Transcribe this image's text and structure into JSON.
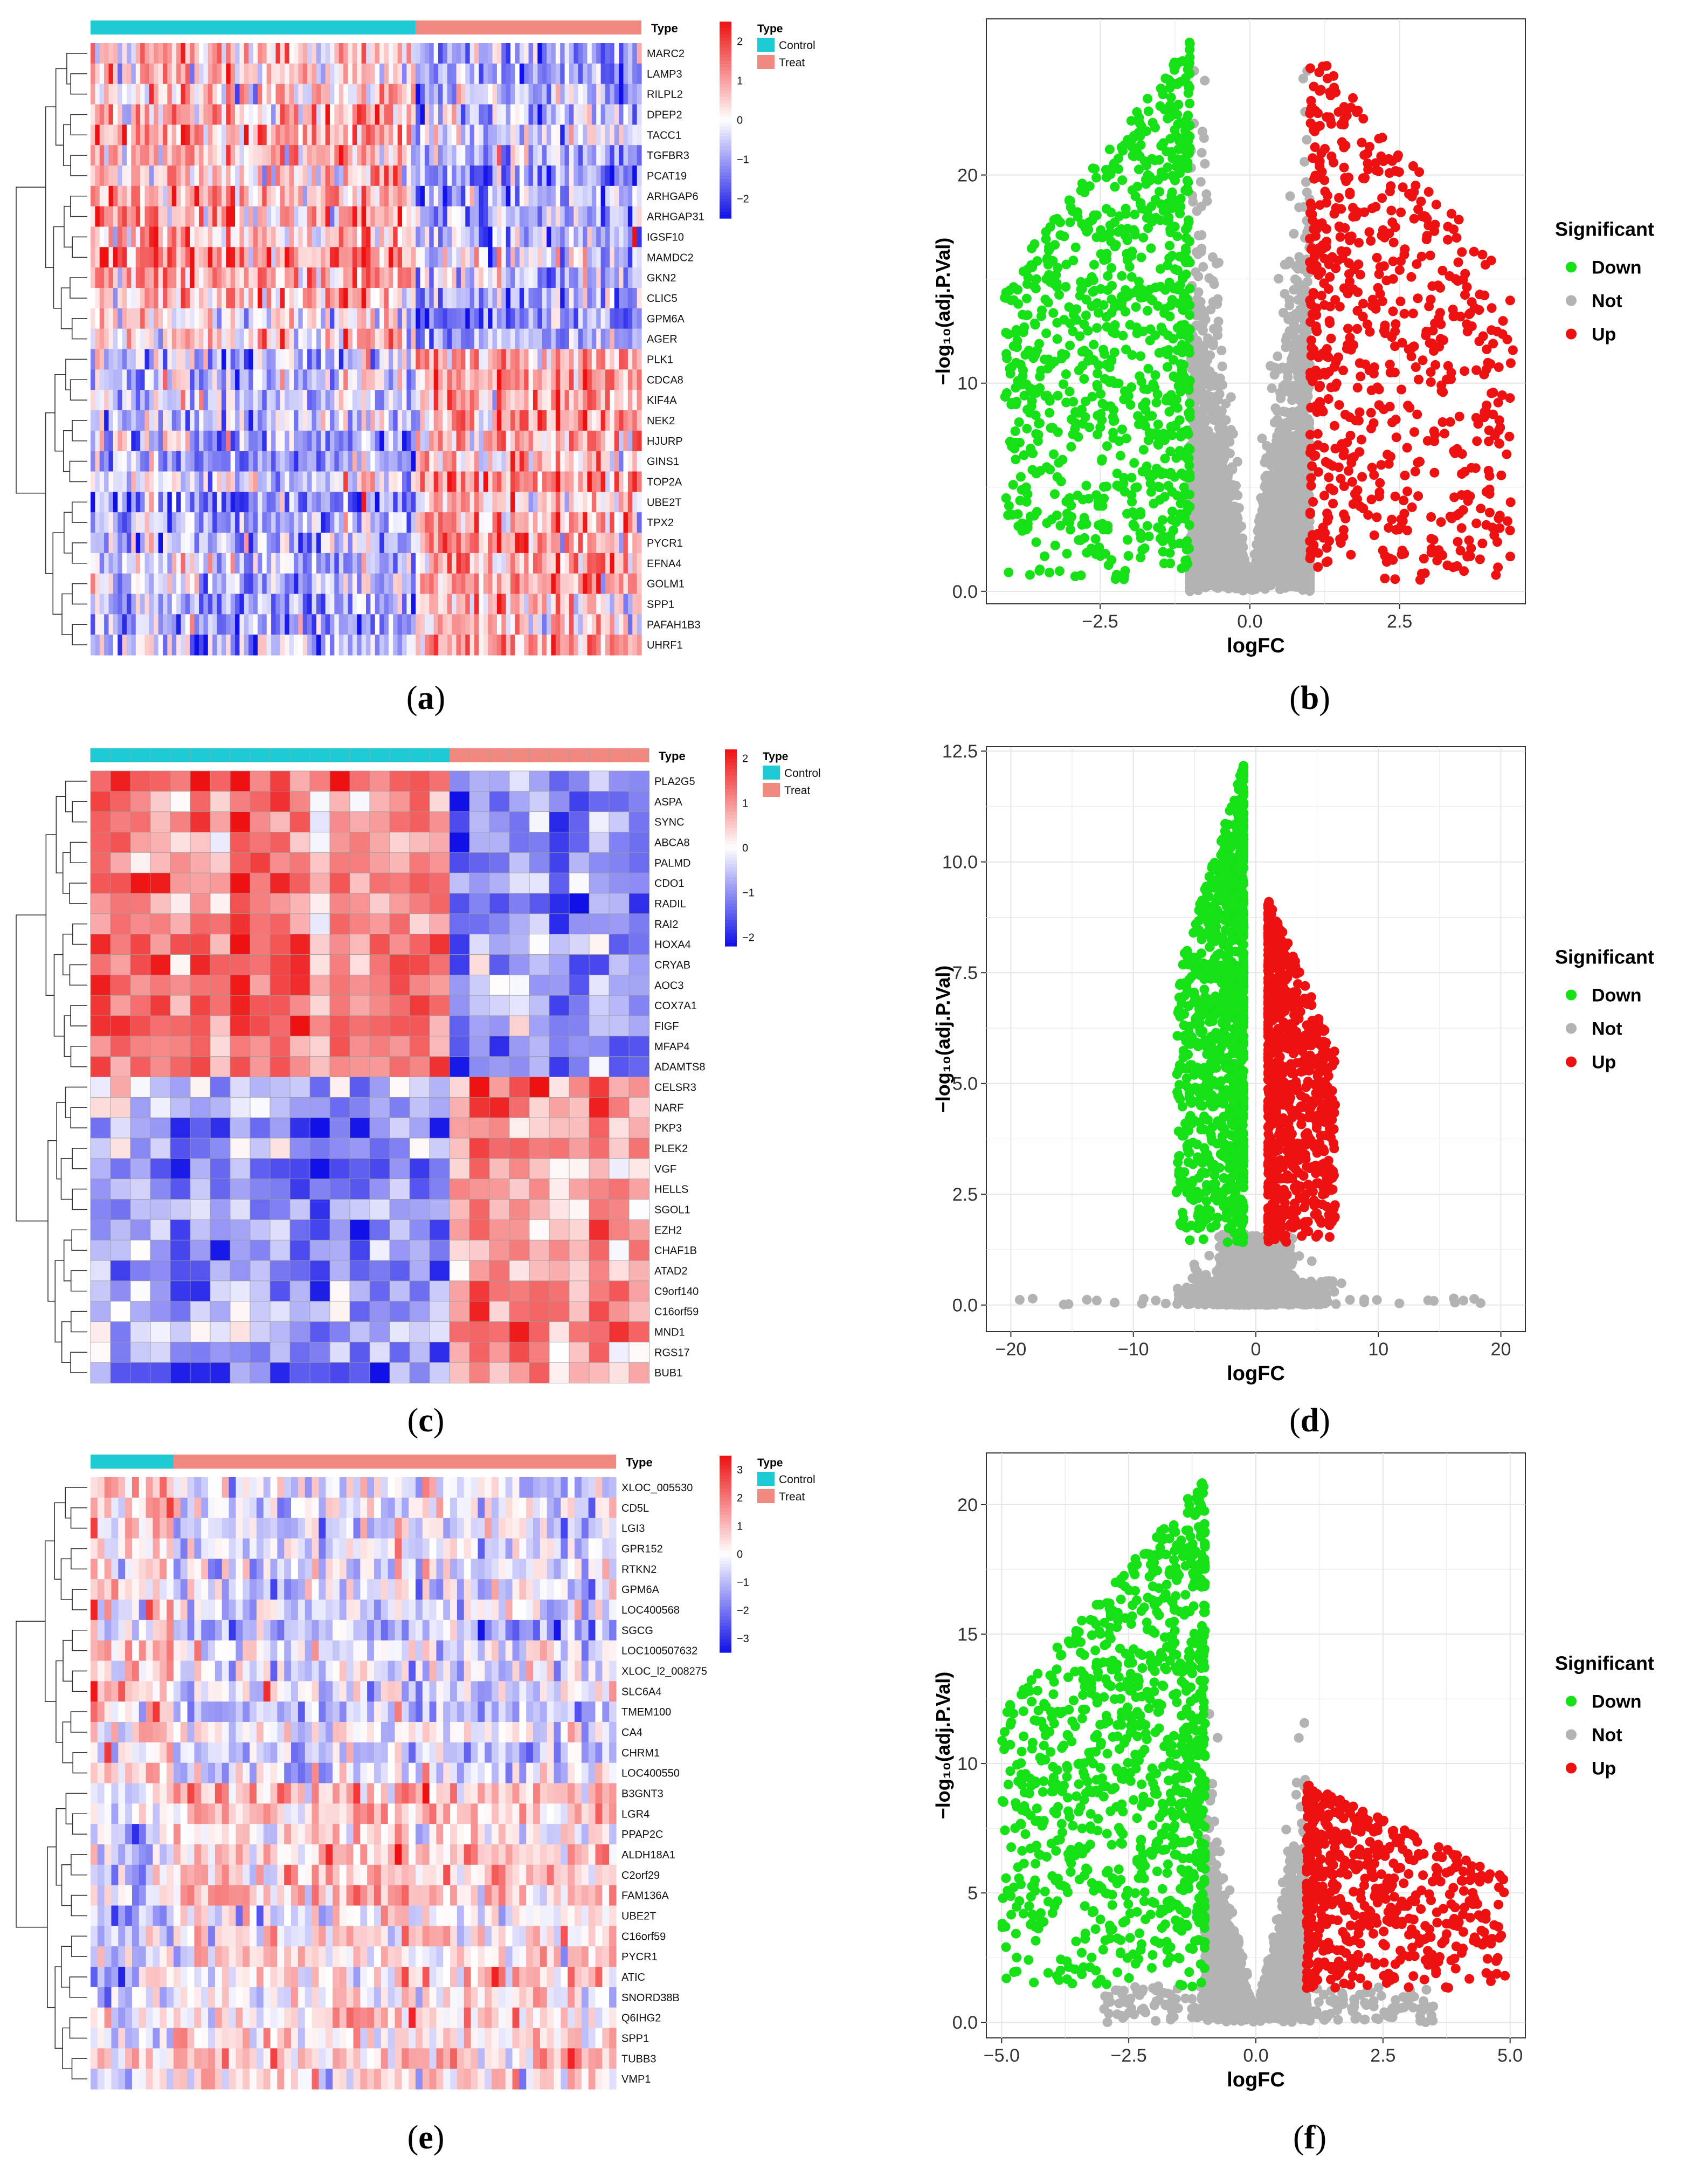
{
  "colors": {
    "control": "#1ecbd4",
    "treat": "#f08a80",
    "heat_low": "#1010e8",
    "heat_mid": "#ffffff",
    "heat_high": "#ee1111",
    "down": "#16e016",
    "not": "#b3b3b3",
    "up": "#ee1111"
  },
  "panels": [
    {
      "id": "a",
      "label": "a"
    },
    {
      "id": "b",
      "label": "b"
    },
    {
      "id": "c",
      "label": "c"
    },
    {
      "id": "d",
      "label": "d"
    },
    {
      "id": "e",
      "label": "e"
    },
    {
      "id": "f",
      "label": "f"
    }
  ],
  "chart_data": [
    {
      "panel": "a",
      "type": "heatmap",
      "annotation_title": "Type",
      "legend_title": "Type",
      "legend_items": [
        "Control",
        "Treat"
      ],
      "n_control": 72,
      "n_treat": 50,
      "colorbar_ticks": [
        "2",
        "1",
        "0",
        "−1",
        "−2"
      ],
      "colorbar_range": [
        -2.5,
        2.5
      ],
      "genes_up_in_control": [
        "MARC2",
        "LAMP3",
        "RILPL2",
        "DPEP2",
        "TACC1",
        "TGFBR3",
        "PCAT19",
        "ARHGAP6",
        "ARHGAP31",
        "IGSF10",
        "MAMDC2",
        "GKN2",
        "CLIC5",
        "GPM6A",
        "AGER"
      ],
      "genes_up_in_treat": [
        "PLK1",
        "CDCA8",
        "KIF4A",
        "NEK2",
        "HJURP",
        "GINS1",
        "TOP2A",
        "UBE2T",
        "TPX2",
        "PYCR1",
        "EFNA4",
        "GOLM1",
        "SPP1",
        "PAFAH1B3",
        "UHRF1"
      ]
    },
    {
      "panel": "b",
      "type": "scatter",
      "xlabel": "logFC",
      "ylabel": "−log₁₀(adj.P.Val)",
      "xlim": [
        -4.4,
        4.6
      ],
      "ylim": [
        -0.6,
        27.5
      ],
      "xticks": [
        -2.5,
        0.0,
        2.5
      ],
      "xtick_labels": [
        "−2.5",
        "0.0",
        "2.5"
      ],
      "yticks": [
        0,
        10,
        20
      ],
      "ytick_labels": [
        "0.0",
        "10",
        "20"
      ],
      "grid": true,
      "legend_title": "Significant",
      "legend_position": "right",
      "series": [
        {
          "name": "Down",
          "x_range": [
            -4.1,
            -1.0
          ],
          "y_max": 26.5,
          "n": 900
        },
        {
          "name": "Not",
          "x_range": [
            -1.0,
            1.0
          ],
          "y_max": 25.0,
          "n": 2600
        },
        {
          "name": "Up",
          "x_range": [
            1.0,
            4.4
          ],
          "y_max": 26.5,
          "n": 650
        }
      ]
    },
    {
      "panel": "c",
      "type": "heatmap",
      "annotation_title": "Type",
      "legend_title": "Type",
      "legend_items": [
        "Control",
        "Treat"
      ],
      "n_control": 18,
      "n_treat": 10,
      "colorbar_ticks": [
        "2",
        "1",
        "0",
        "−1",
        "−2"
      ],
      "colorbar_range": [
        -2.2,
        2.2
      ],
      "genes_up_in_control": [
        "PLA2G5",
        "ASPA",
        "SYNC",
        "ABCA8",
        "PALMD",
        "CDO1",
        "RADIL",
        "RAI2",
        "HOXA4",
        "CRYAB",
        "AOC3",
        "COX7A1",
        "FIGF",
        "MFAP4",
        "ADAMTS8"
      ],
      "genes_up_in_treat": [
        "CELSR3",
        "NARF",
        "PKP3",
        "PLEK2",
        "VGF",
        "HELLS",
        "SGOL1",
        "EZH2",
        "CHAF1B",
        "ATAD2",
        "C9orf140",
        "C16orf59",
        "MND1",
        "RGS17",
        "BUB1"
      ]
    },
    {
      "panel": "d",
      "type": "scatter",
      "xlabel": "logFC",
      "ylabel": "−log₁₀(adj.P.Val)",
      "xlim": [
        -22,
        22
      ],
      "ylim": [
        -0.6,
        12.6
      ],
      "xticks": [
        -20,
        -10,
        0,
        10,
        20
      ],
      "xtick_labels": [
        "−20",
        "−10",
        "0",
        "10",
        "20"
      ],
      "yticks": [
        0.0,
        2.5,
        5.0,
        7.5,
        10.0,
        12.5
      ],
      "ytick_labels": [
        "0.0",
        "2.5",
        "5.0",
        "7.5",
        "10.0",
        "12.5"
      ],
      "grid": true,
      "legend_title": "Significant",
      "legend_position": "right",
      "series": [
        {
          "name": "Down",
          "x_range": [
            -6.5,
            -1.0
          ],
          "y_max": 12.2,
          "n": 1100
        },
        {
          "name": "Not",
          "x_range": [
            -20,
            20
          ],
          "y_max": 1.6,
          "n": 1400
        },
        {
          "name": "Up",
          "x_range": [
            1.0,
            6.5
          ],
          "y_max": 9.2,
          "n": 800
        }
      ]
    },
    {
      "panel": "e",
      "type": "heatmap",
      "annotation_title": "Type",
      "legend_title": "Type",
      "legend_items": [
        "Control",
        "Treat"
      ],
      "n_control": 12,
      "n_treat": 64,
      "colorbar_ticks": [
        "3",
        "2",
        "1",
        "0",
        "−1",
        "−2",
        "−3"
      ],
      "colorbar_range": [
        -3.5,
        3.5
      ],
      "genes_up_in_control": [
        "XLOC_005530",
        "CD5L",
        "LGI3",
        "GPR152",
        "RTKN2",
        "GPM6A",
        "LOC400568",
        "SGCG",
        "LOC100507632",
        "XLOC_l2_008275",
        "SLC6A4",
        "TMEM100",
        "CA4",
        "CHRM1",
        "LOC400550"
      ],
      "genes_up_in_treat": [
        "B3GNT3",
        "LGR4",
        "PPAP2C",
        "ALDH18A1",
        "C2orf29",
        "FAM136A",
        "UBE2T",
        "C16orf59",
        "PYCR1",
        "ATIC",
        "SNORD38B",
        "Q6IHG2",
        "SPP1",
        "TUBB3",
        "VMP1"
      ]
    },
    {
      "panel": "f",
      "type": "scatter",
      "xlabel": "logFC",
      "ylabel": "−log₁₀(adj.P.Val)",
      "xlim": [
        -5.3,
        5.3
      ],
      "ylim": [
        -0.6,
        22
      ],
      "xticks": [
        -5.0,
        -2.5,
        0.0,
        2.5,
        5.0
      ],
      "xtick_labels": [
        "−5.0",
        "−2.5",
        "0.0",
        "2.5",
        "5.0"
      ],
      "yticks": [
        0,
        5,
        10,
        15,
        20
      ],
      "ytick_labels": [
        "0.0",
        "5",
        "10",
        "15",
        "20"
      ],
      "grid": true,
      "legend_title": "Significant",
      "legend_position": "right",
      "series": [
        {
          "name": "Down",
          "x_range": [
            -5.0,
            -1.0
          ],
          "y_max": 21.0,
          "n": 1000
        },
        {
          "name": "Not",
          "x_range": [
            -3.0,
            3.5
          ],
          "y_max": 12.0,
          "n": 2600
        },
        {
          "name": "Up",
          "x_range": [
            1.0,
            4.9
          ],
          "y_max": 9.2,
          "n": 550
        }
      ]
    }
  ]
}
